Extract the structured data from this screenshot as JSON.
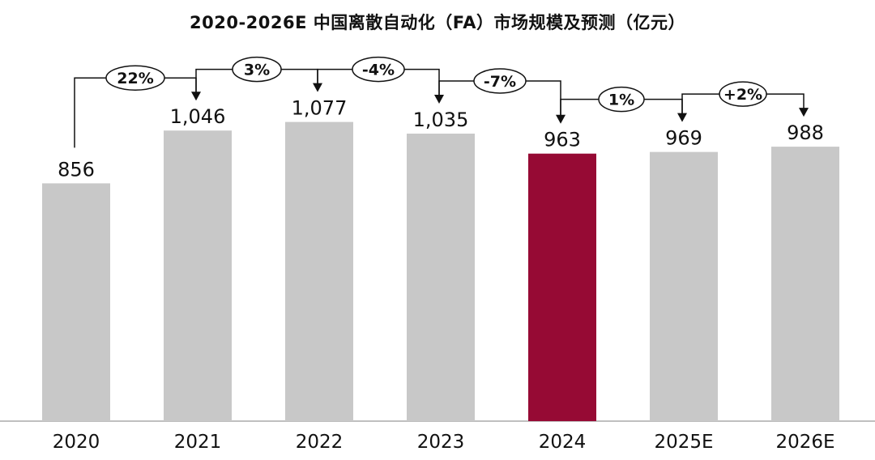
{
  "chart_data": {
    "type": "bar",
    "title": "2020-2026E 中国离散自动化（FA）市场规模及预测（亿元）",
    "categories": [
      "2020",
      "2021",
      "2022",
      "2023",
      "2024",
      "2025E",
      "2026E"
    ],
    "values": [
      856,
      1046,
      1077,
      1035,
      963,
      969,
      988
    ],
    "value_labels": [
      "856",
      "1,046",
      "1,077",
      "1,035",
      "963",
      "969",
      "988"
    ],
    "growth_labels": [
      "22%",
      "3%",
      "-4%",
      "-7%",
      "1%",
      "+2%"
    ],
    "ylim": [
      0,
      1300
    ],
    "grid": false,
    "legend": "none",
    "colors": {
      "default": "#c8c8c8",
      "highlight": "#960a34"
    },
    "highlight_index": 4
  }
}
